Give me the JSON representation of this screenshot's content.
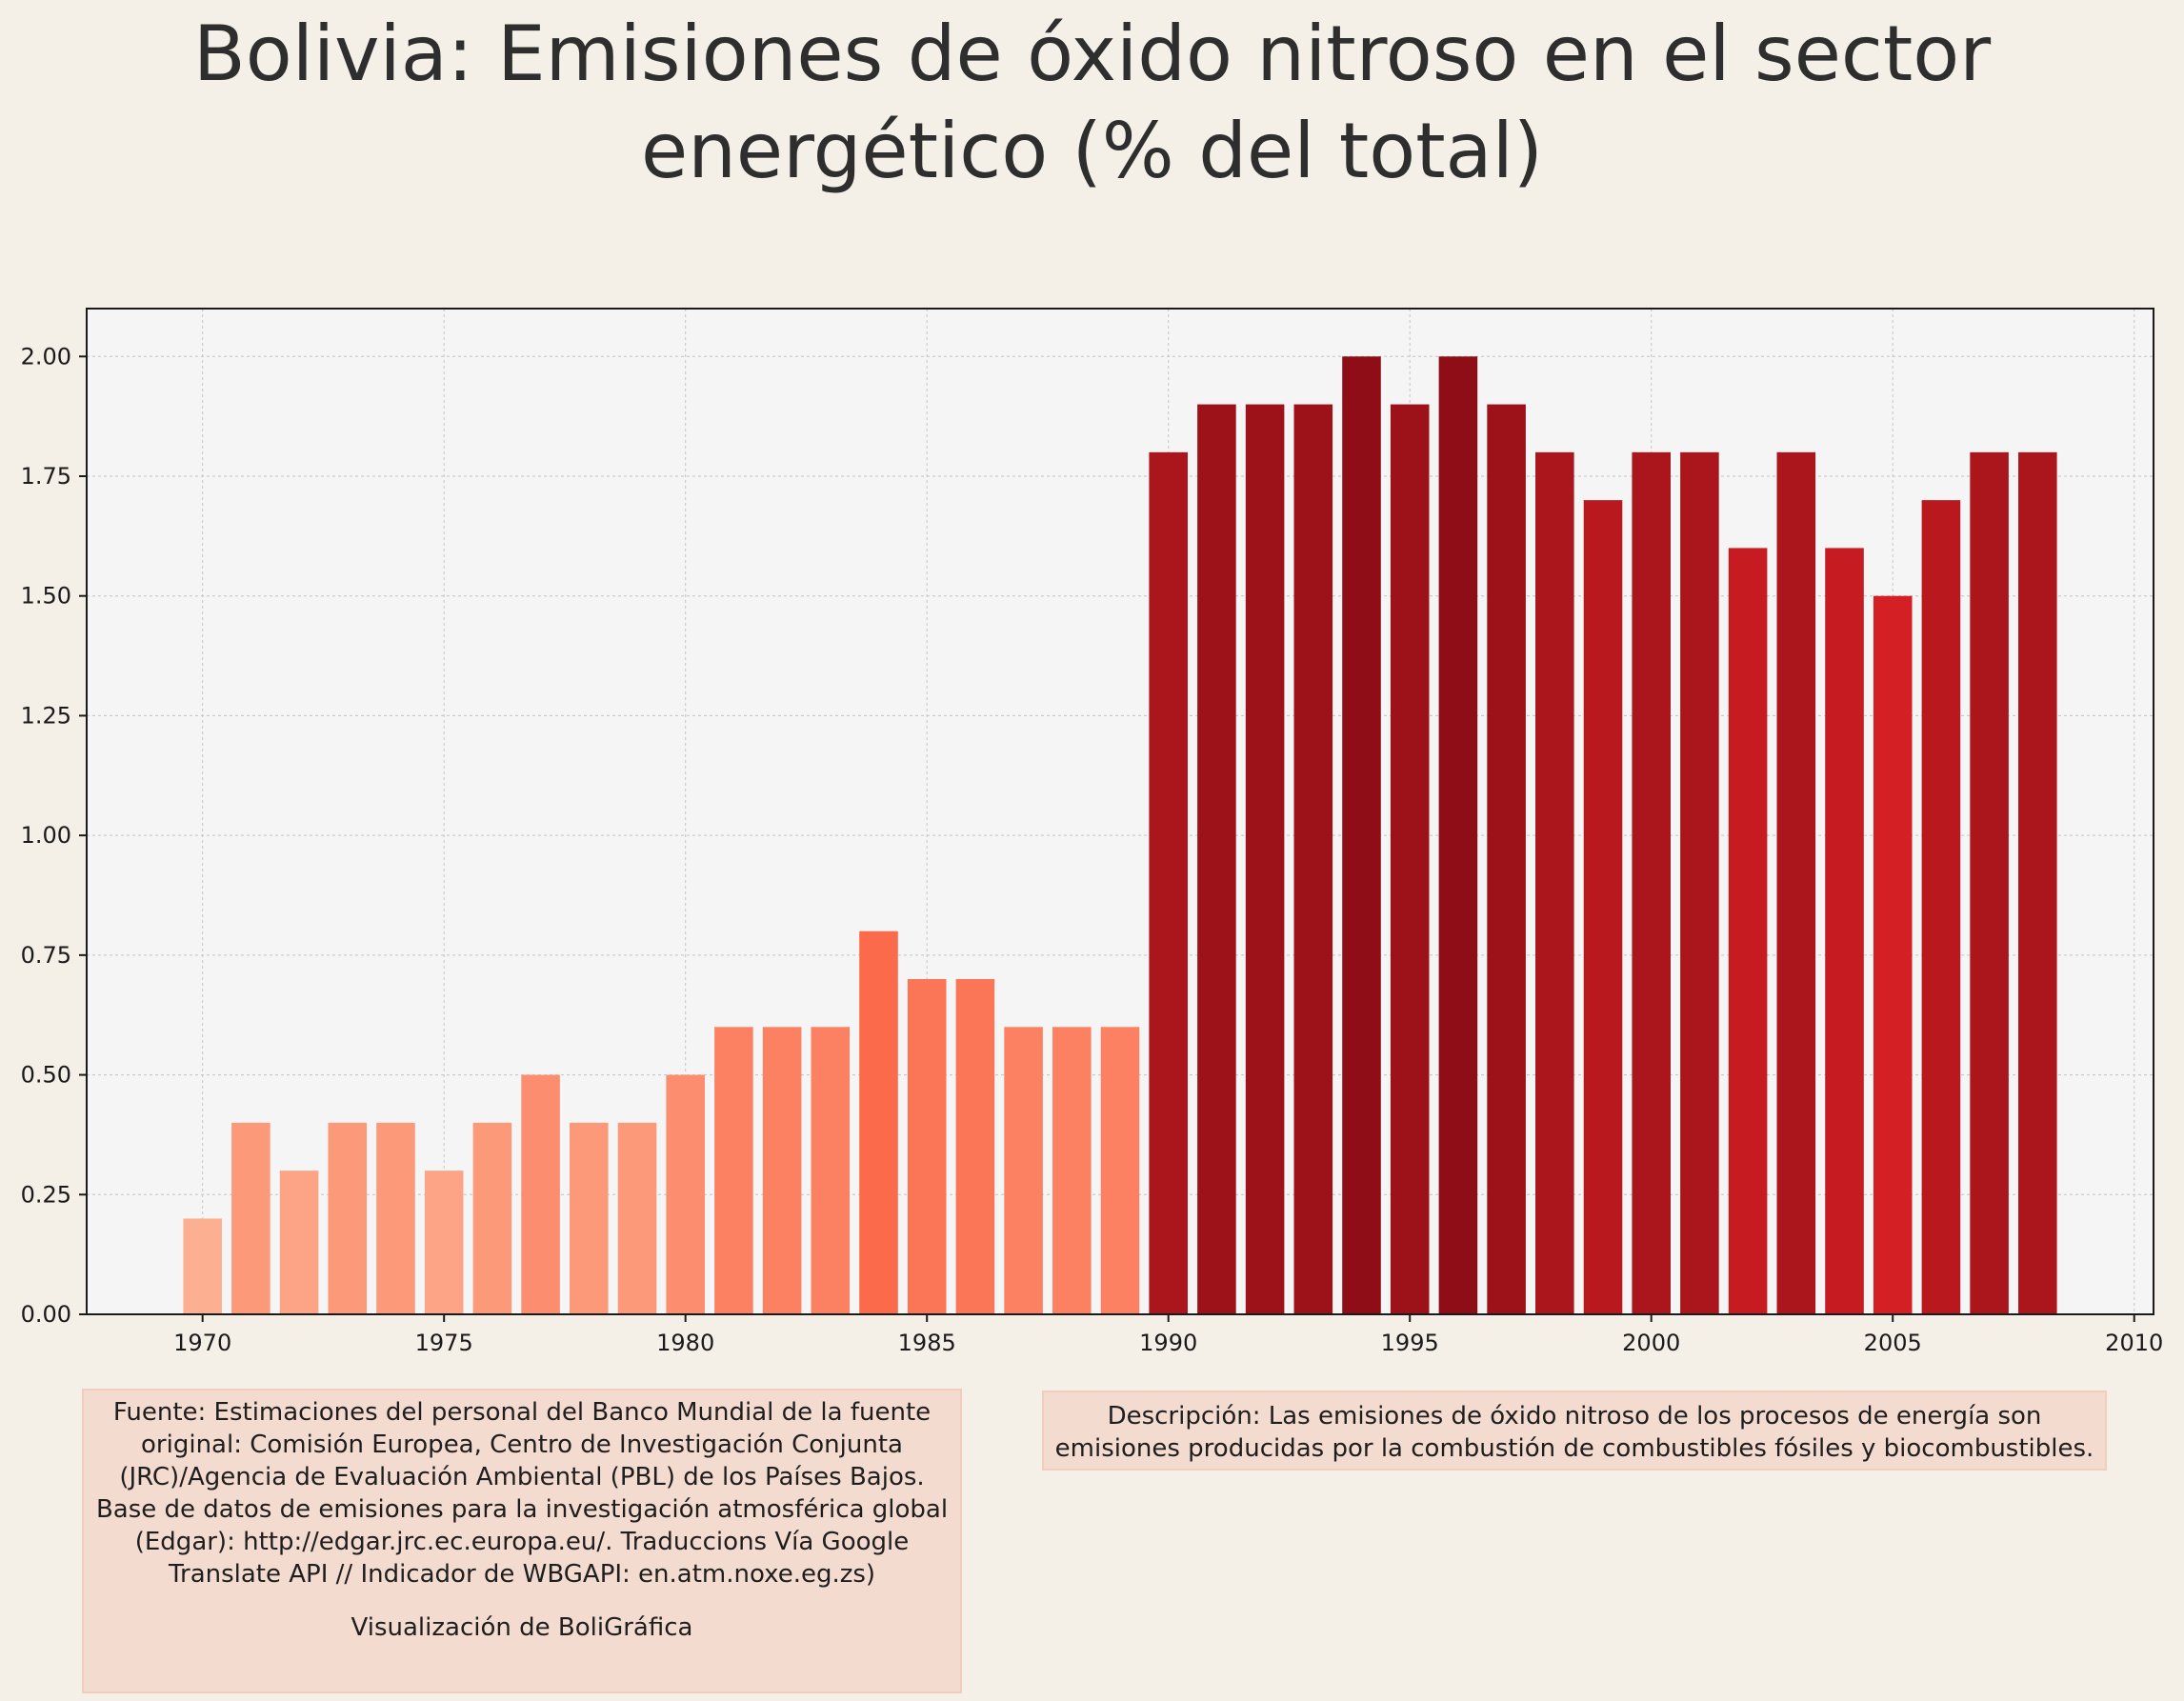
{
  "title": "Bolivia:  Emisiones de óxido nitroso en el sector energético (% del total)",
  "chart_data": {
    "type": "bar",
    "title": "Bolivia:  Emisiones de óxido nitroso en el sector energético (% del total)",
    "xlabel": "",
    "ylabel": "",
    "x": [
      1970,
      1971,
      1972,
      1973,
      1974,
      1975,
      1976,
      1977,
      1978,
      1979,
      1980,
      1981,
      1982,
      1983,
      1984,
      1985,
      1986,
      1987,
      1988,
      1989,
      1990,
      1991,
      1992,
      1993,
      1994,
      1995,
      1996,
      1997,
      1998,
      1999,
      2000,
      2001,
      2002,
      2003,
      2004,
      2005,
      2006,
      2007,
      2008
    ],
    "values": [
      0.2,
      0.4,
      0.3,
      0.4,
      0.4,
      0.3,
      0.4,
      0.5,
      0.4,
      0.4,
      0.5,
      0.6,
      0.6,
      0.6,
      0.8,
      0.7,
      0.7,
      0.6,
      0.6,
      0.6,
      1.8,
      1.9,
      1.9,
      1.9,
      2.0,
      1.9,
      2.0,
      1.9,
      1.8,
      1.7,
      1.8,
      1.8,
      1.6,
      1.8,
      1.6,
      1.5,
      1.7,
      1.8,
      1.8
    ],
    "xlim": [
      1967.6,
      2010.4
    ],
    "ylim": [
      0,
      2.1
    ],
    "xticks": [
      1970,
      1975,
      1980,
      1985,
      1990,
      1995,
      2000,
      2005,
      2010
    ],
    "xtick_labels": [
      "1970",
      "1975",
      "1980",
      "1985",
      "1990",
      "1995",
      "2000",
      "2005",
      "2010"
    ],
    "yticks": [
      0,
      0.25,
      0.5,
      0.75,
      1.0,
      1.25,
      1.5,
      1.75,
      2.0
    ],
    "ytick_labels": [
      "0.00",
      "0.25",
      "0.50",
      "0.75",
      "1.00",
      "1.25",
      "1.50",
      "1.75",
      "2.00"
    ],
    "grid": true,
    "colors": {
      "before_1990": "#fc8b6a",
      "from_1990": "#b1141c",
      "plot_background": "#f5f5f5",
      "page_background": "#f4efe7"
    }
  },
  "notes": {
    "source": "Fuente: Estimaciones del personal del Banco Mundial de la fuente original: Comisión Europea, Centro de Investigación Conjunta (JRC)/Agencia de Evaluación Ambiental (PBL) de los Países Bajos. Base de datos de emisiones para la investigación atmosférica global (Edgar): http://edgar.jrc.ec.europa.eu/. Traduccions Vía Google Translate API // Indicador de WBGAPI: en.atm.noxe.eg.zs)",
    "credit": "Visualización de BoliGráfica",
    "description": "Descripción: Las emisiones de óxido nitroso de los procesos de energía son emisiones producidas por la combustión de combustibles fósiles y biocombustibles."
  }
}
